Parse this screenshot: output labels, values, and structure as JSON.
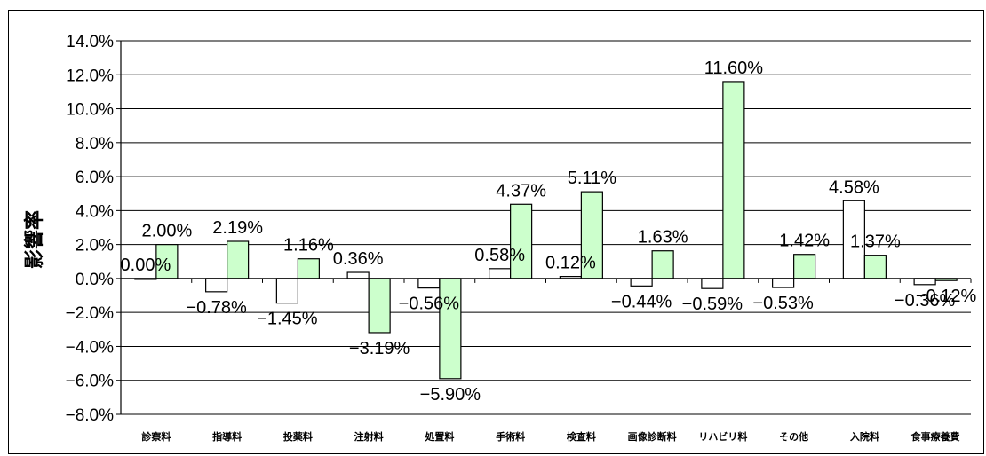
{
  "chart_data": {
    "type": "bar",
    "ylabel": "影響率",
    "ylim": [
      -8.0,
      14.0
    ],
    "ytick_step": 2.0,
    "ytick_labels": [
      "14.0%",
      "12.0%",
      "10.0%",
      "8.0%",
      "6.0%",
      "4.0%",
      "2.0%",
      "0.0%",
      "−2.0%",
      "−4.0%",
      "−6.0%",
      "−8.0%"
    ],
    "grid": true,
    "categories": [
      "診察料",
      "指導料",
      "投薬料",
      "注射料",
      "処置料",
      "手術料",
      "検査料",
      "画像診断料",
      "リハビリ料",
      "その他",
      "入院料",
      "食事療養費"
    ],
    "series": [
      {
        "color": "#ffffff",
        "values": [
          0.0,
          -0.78,
          -1.45,
          0.36,
          -0.56,
          0.58,
          0.12,
          -0.44,
          -0.59,
          -0.53,
          4.58,
          -0.36
        ],
        "labels": [
          "0.00%",
          "−0.78%",
          "−1.45%",
          "0.36%",
          "−0.56%",
          "0.58%",
          "0.12%",
          "−0.44%",
          "−0.59%",
          "−0.53%",
          "4.58%",
          "−0.36%"
        ]
      },
      {
        "color": "#ccffcc",
        "values": [
          2.0,
          2.19,
          1.16,
          -3.19,
          -5.9,
          4.37,
          5.11,
          1.63,
          11.6,
          1.42,
          1.37,
          -0.12
        ],
        "labels": [
          "2.00%",
          "2.19%",
          "1.16%",
          "−3.19%",
          "−5.90%",
          "4.37%",
          "5.11%",
          "1.63%",
          "11.60%",
          "1.42%",
          "1.37%",
          "−0.12%"
        ]
      }
    ]
  }
}
